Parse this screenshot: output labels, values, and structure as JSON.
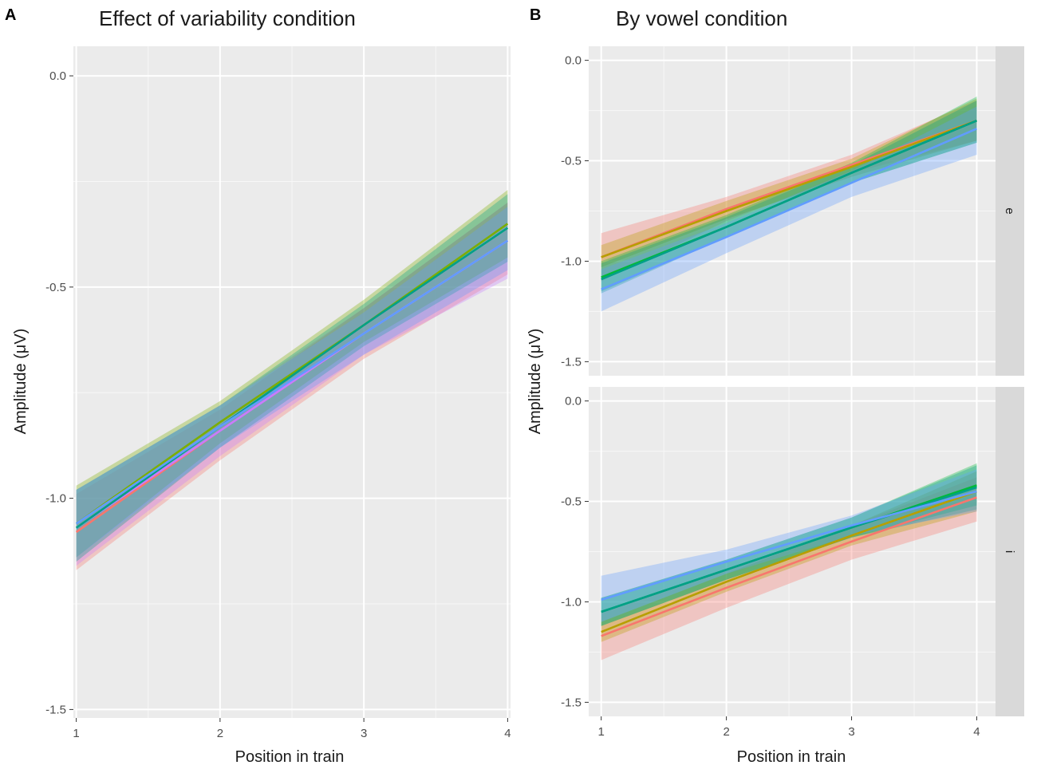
{
  "figure": {
    "panel_a_letter": "A",
    "panel_b_letter": "B"
  },
  "chart_data": [
    {
      "type": "line",
      "title": "Effect of variability condition",
      "xlabel": "Position in train",
      "ylabel": "Amplitude (μV)",
      "x": [
        1,
        2,
        3,
        4
      ],
      "xticks": [
        "1",
        "2",
        "3",
        "4"
      ],
      "xlim": [
        0.98,
        4.02
      ],
      "yticks": [
        "0.0",
        "-0.5",
        "-1.0",
        "-1.5"
      ],
      "ytick_values": [
        0.0,
        -0.5,
        -1.0,
        -1.5
      ],
      "ylim": [
        -1.52,
        0.07
      ],
      "grid": true,
      "series": [
        {
          "name": "red",
          "color": "#F8766D",
          "line": [
            -1.08,
            -0.84,
            -0.61,
            -0.39
          ],
          "lower": [
            -1.17,
            -0.91,
            -0.67,
            -0.47
          ],
          "upper": [
            -0.99,
            -0.79,
            -0.55,
            -0.3
          ]
        },
        {
          "name": "purple",
          "color": "#C77CFF",
          "line": [
            -1.07,
            -0.84,
            -0.61,
            -0.39
          ],
          "lower": [
            -1.16,
            -0.9,
            -0.66,
            -0.48
          ],
          "upper": [
            -0.98,
            -0.78,
            -0.55,
            -0.3
          ]
        },
        {
          "name": "green",
          "color": "#7CAE00",
          "line": [
            -1.06,
            -0.82,
            -0.59,
            -0.35
          ],
          "lower": [
            -1.14,
            -0.87,
            -0.63,
            -0.43
          ],
          "upper": [
            -0.97,
            -0.77,
            -0.53,
            -0.27
          ]
        },
        {
          "name": "teal",
          "color": "#00A087",
          "line": [
            -1.07,
            -0.83,
            -0.59,
            -0.36
          ],
          "lower": [
            -1.15,
            -0.88,
            -0.64,
            -0.44
          ],
          "upper": [
            -0.98,
            -0.78,
            -0.54,
            -0.28
          ]
        },
        {
          "name": "blue",
          "color": "#619CFF",
          "line": [
            -1.06,
            -0.83,
            -0.61,
            -0.39
          ],
          "lower": [
            -1.14,
            -0.88,
            -0.66,
            -0.46
          ],
          "upper": [
            -0.98,
            -0.78,
            -0.56,
            -0.31
          ]
        }
      ]
    },
    {
      "type": "line",
      "title": "By vowel condition",
      "xlabel": "Position in train",
      "ylabel": "Amplitude (μV)",
      "x": [
        1,
        2,
        3,
        4
      ],
      "xticks": [
        "1",
        "2",
        "3",
        "4"
      ],
      "xlim": [
        0.9,
        4.15
      ],
      "yticks": [
        "0.0",
        "-0.5",
        "-1.0",
        "-1.5"
      ],
      "ytick_values": [
        0.0,
        -0.5,
        -1.0,
        -1.5
      ],
      "grid": true,
      "facets": [
        {
          "strip": "e",
          "ylim": [
            -1.57,
            0.07
          ],
          "series": [
            {
              "name": "red",
              "color": "#F8766D",
              "line": [
                -0.98,
                -0.74,
                -0.52,
                -0.3
              ],
              "lower": [
                -1.1,
                -0.8,
                -0.56,
                -0.4
              ],
              "upper": [
                -0.86,
                -0.68,
                -0.47,
                -0.2
              ]
            },
            {
              "name": "olive",
              "color": "#B79F00",
              "line": [
                -0.98,
                -0.75,
                -0.53,
                -0.3
              ],
              "lower": [
                -1.03,
                -0.79,
                -0.58,
                -0.4
              ],
              "upper": [
                -0.92,
                -0.7,
                -0.49,
                -0.19
              ]
            },
            {
              "name": "green",
              "color": "#00BA38",
              "line": [
                -1.08,
                -0.83,
                -0.56,
                -0.3
              ],
              "lower": [
                -1.15,
                -0.88,
                -0.61,
                -0.41
              ],
              "upper": [
                -1.0,
                -0.77,
                -0.51,
                -0.18
              ]
            },
            {
              "name": "teal",
              "color": "#00A087",
              "line": [
                -1.09,
                -0.83,
                -0.56,
                -0.3
              ],
              "lower": [
                -1.16,
                -0.88,
                -0.61,
                -0.41
              ],
              "upper": [
                -1.01,
                -0.78,
                -0.52,
                -0.2
              ]
            },
            {
              "name": "blue",
              "color": "#619CFF",
              "line": [
                -1.14,
                -0.88,
                -0.61,
                -0.34
              ],
              "lower": [
                -1.25,
                -0.96,
                -0.68,
                -0.47
              ],
              "upper": [
                -1.04,
                -0.81,
                -0.55,
                -0.23
              ]
            }
          ]
        },
        {
          "strip": "i",
          "ylim": [
            -1.57,
            0.07
          ],
          "series": [
            {
              "name": "red",
              "color": "#F8766D",
              "line": [
                -1.17,
                -0.93,
                -0.7,
                -0.48
              ],
              "lower": [
                -1.29,
                -1.03,
                -0.79,
                -0.6
              ],
              "upper": [
                -1.05,
                -0.84,
                -0.62,
                -0.38
              ]
            },
            {
              "name": "olive",
              "color": "#B79F00",
              "line": [
                -1.15,
                -0.9,
                -0.67,
                -0.45
              ],
              "lower": [
                -1.2,
                -0.95,
                -0.72,
                -0.55
              ],
              "upper": [
                -1.1,
                -0.86,
                -0.62,
                -0.35
              ]
            },
            {
              "name": "green",
              "color": "#00BA38",
              "line": [
                -1.05,
                -0.84,
                -0.63,
                -0.42
              ],
              "lower": [
                -1.12,
                -0.89,
                -0.68,
                -0.52
              ],
              "upper": [
                -0.98,
                -0.79,
                -0.58,
                -0.31
              ]
            },
            {
              "name": "teal",
              "color": "#00A087",
              "line": [
                -1.05,
                -0.84,
                -0.63,
                -0.43
              ],
              "lower": [
                -1.12,
                -0.89,
                -0.68,
                -0.54
              ],
              "upper": [
                -0.98,
                -0.79,
                -0.58,
                -0.32
              ]
            },
            {
              "name": "blue",
              "color": "#619CFF",
              "line": [
                -0.99,
                -0.8,
                -0.62,
                -0.45
              ],
              "lower": [
                -1.1,
                -0.86,
                -0.67,
                -0.55
              ],
              "upper": [
                -0.87,
                -0.74,
                -0.57,
                -0.34
              ]
            }
          ]
        }
      ]
    }
  ]
}
